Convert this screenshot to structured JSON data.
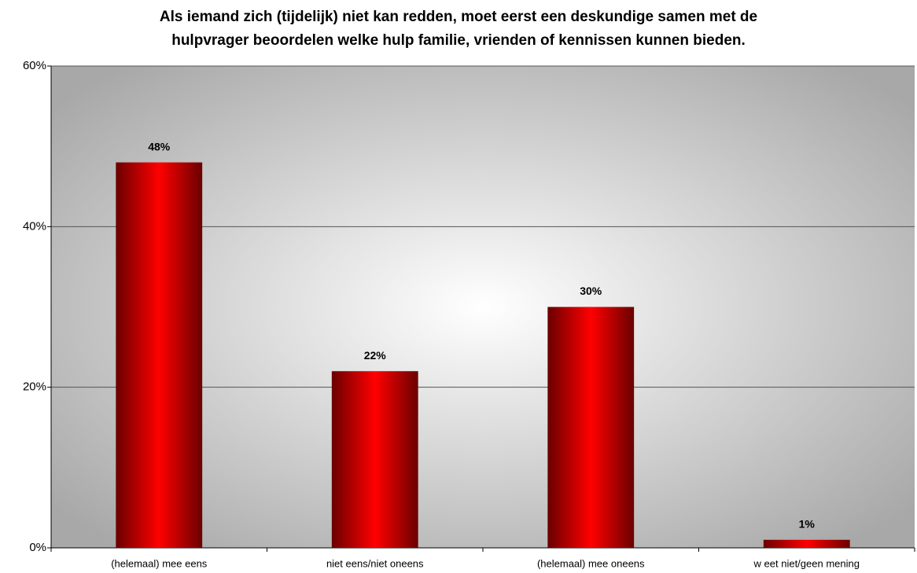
{
  "chart_data": {
    "type": "bar",
    "title": [
      "Als iemand zich (tijdelijk) niet kan redden, moet eerst een deskundige samen met de",
      "hulpvrager beoordelen welke hulp familie, vrienden of kennissen kunnen bieden."
    ],
    "categories": [
      "(helemaal) mee eens",
      "niet eens/niet oneens",
      "(helemaal) mee oneens",
      "w eet niet/geen mening"
    ],
    "values": [
      48,
      22,
      30,
      1
    ],
    "value_labels": [
      "48%",
      "22%",
      "30%",
      "1%"
    ],
    "color": "#ff0000",
    "ylim": [
      0,
      60
    ],
    "yticks": [
      {
        "value": 0,
        "label": "0%"
      },
      {
        "value": 20,
        "label": "20%"
      },
      {
        "value": 40,
        "label": "40%"
      },
      {
        "value": 60,
        "label": "60%"
      }
    ],
    "grid": true
  }
}
